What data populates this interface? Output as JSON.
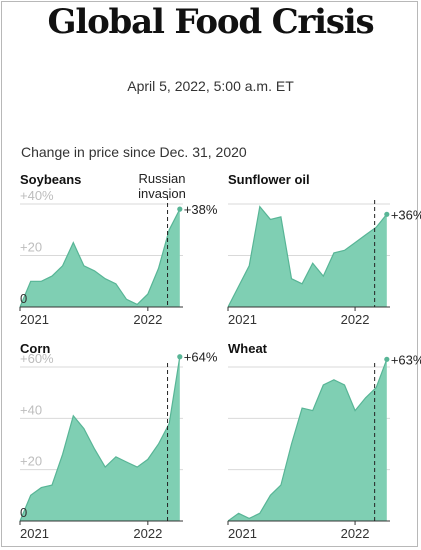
{
  "header": {
    "title": "Global Food Crisis",
    "date": "April 5, 2022, 5:00 a.m. ET",
    "subtitle": "Change in price since Dec. 31, 2020"
  },
  "colors": {
    "fill": "#7fcfb3",
    "stroke": "#58b596",
    "grid": "#d9d9d9",
    "dashed": "#222222"
  },
  "chart_data": [
    {
      "type": "area",
      "title": "Soybeans",
      "ylim": [
        0,
        40
      ],
      "yticks": [
        0,
        20,
        40
      ],
      "ytick_labels": [
        "0",
        "+20",
        "+40%"
      ],
      "xticks": [
        0,
        12
      ],
      "xtick_labels": [
        "2021",
        "2022"
      ],
      "xlim": [
        0,
        15.3
      ],
      "x": [
        0,
        1,
        2,
        3,
        4,
        5,
        6,
        7,
        8,
        9,
        10,
        11,
        12,
        13,
        14,
        15
      ],
      "values": [
        0,
        10,
        10,
        12,
        16,
        25,
        16,
        14,
        11,
        9,
        3,
        1,
        5,
        15,
        30,
        38
      ],
      "end_label": "+38%",
      "annotation": "Russian invasion",
      "event_x": 13.85
    },
    {
      "type": "area",
      "title": "Sunflower oil",
      "ylim": [
        0,
        40
      ],
      "yticks": [
        0,
        20,
        40
      ],
      "ytick_labels": [
        "",
        "",
        ""
      ],
      "xticks": [
        0,
        12
      ],
      "xtick_labels": [
        "2021",
        "2022"
      ],
      "xlim": [
        0,
        15.3
      ],
      "x": [
        0,
        1,
        2,
        3,
        4,
        5,
        6,
        7,
        8,
        9,
        10,
        11,
        12,
        13,
        14,
        15
      ],
      "values": [
        0,
        8,
        16,
        39,
        34,
        35,
        11,
        9,
        17,
        12,
        21,
        22,
        25,
        28,
        31,
        36
      ],
      "end_label": "+36%",
      "event_x": 13.85
    },
    {
      "type": "area",
      "title": "Corn",
      "ylim": [
        0,
        60
      ],
      "yticks": [
        0,
        20,
        40,
        60
      ],
      "ytick_labels": [
        "0",
        "+20",
        "+40",
        "+60%"
      ],
      "xticks": [
        0,
        12
      ],
      "xtick_labels": [
        "2021",
        "2022"
      ],
      "xlim": [
        0,
        15.3
      ],
      "x": [
        0,
        1,
        2,
        3,
        4,
        5,
        6,
        7,
        8,
        9,
        10,
        11,
        12,
        13,
        14,
        15
      ],
      "values": [
        0,
        10,
        13,
        14,
        26,
        41,
        36,
        28,
        21,
        25,
        23,
        21,
        24,
        30,
        38,
        64
      ],
      "end_label": "+64%",
      "event_x": 13.85
    },
    {
      "type": "area",
      "title": "Wheat",
      "ylim": [
        0,
        60
      ],
      "yticks": [
        0,
        20,
        40,
        60
      ],
      "ytick_labels": [
        "",
        "",
        "",
        ""
      ],
      "xticks": [
        0,
        12
      ],
      "xtick_labels": [
        "2021",
        "2022"
      ],
      "xlim": [
        0,
        15.3
      ],
      "x": [
        0,
        1,
        2,
        3,
        4,
        5,
        6,
        7,
        8,
        9,
        10,
        11,
        12,
        13,
        14,
        15
      ],
      "values": [
        0,
        3,
        1,
        3,
        10,
        14,
        30,
        44,
        43,
        53,
        55,
        53,
        43,
        48,
        52,
        63
      ],
      "end_label": "+63%",
      "event_x": 13.85
    }
  ]
}
